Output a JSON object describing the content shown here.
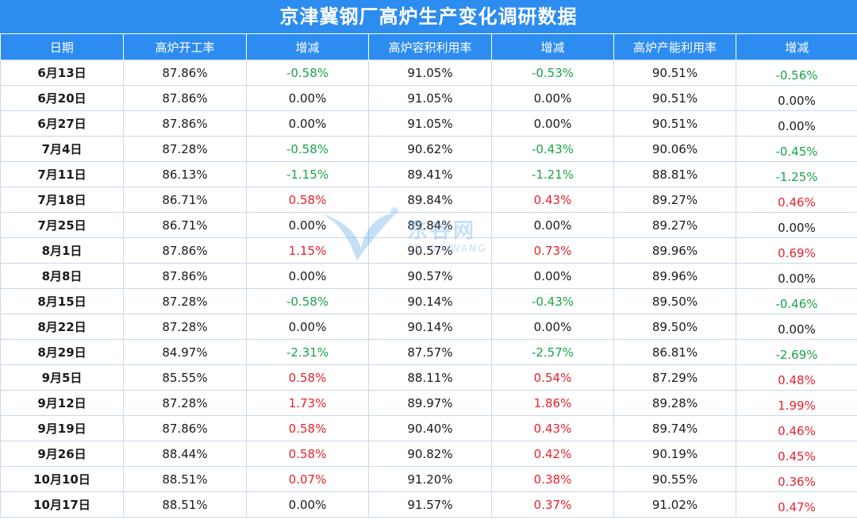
{
  "title": "京津冀钢厂高炉生产变化调研数据",
  "headers": [
    "日期",
    "高炉开工率",
    "增减",
    "高炉容积利用率",
    "增减",
    "高炉产能利用率",
    "增减"
  ],
  "rows": [
    [
      "6月13日",
      "87.86%",
      "-0.58%",
      "91.05%",
      "-0.53%",
      "90.51%",
      "-0.56%"
    ],
    [
      "6月20日",
      "87.86%",
      "0.00%",
      "91.05%",
      "0.00%",
      "90.51%",
      "0.00%"
    ],
    [
      "6月27日",
      "87.86%",
      "0.00%",
      "91.05%",
      "0.00%",
      "90.51%",
      "0.00%"
    ],
    [
      "7月4日",
      "87.28%",
      "-0.58%",
      "90.62%",
      "-0.43%",
      "90.06%",
      "-0.45%"
    ],
    [
      "7月11日",
      "86.13%",
      "-1.15%",
      "89.41%",
      "-1.21%",
      "88.81%",
      "-1.25%"
    ],
    [
      "7月18日",
      "86.71%",
      "0.58%",
      "89.84%",
      "0.43%",
      "89.27%",
      "0.46%"
    ],
    [
      "7月25日",
      "86.71%",
      "0.00%",
      "89.84%",
      "0.00%",
      "89.27%",
      "0.00%"
    ],
    [
      "8月1日",
      "87.86%",
      "1.15%",
      "90.57%",
      "0.73%",
      "89.96%",
      "0.69%"
    ],
    [
      "8月8日",
      "87.86%",
      "0.00%",
      "90.57%",
      "0.00%",
      "89.96%",
      "0.00%"
    ],
    [
      "8月15日",
      "87.28%",
      "-0.58%",
      "90.14%",
      "-0.43%",
      "89.50%",
      "-0.46%"
    ],
    [
      "8月22日",
      "87.28%",
      "0.00%",
      "90.14%",
      "0.00%",
      "89.50%",
      "0.00%"
    ],
    [
      "8月29日",
      "84.97%",
      "-2.31%",
      "87.57%",
      "-2.57%",
      "86.81%",
      "-2.69%"
    ],
    [
      "9月5日",
      "85.55%",
      "0.58%",
      "88.11%",
      "0.54%",
      "87.29%",
      "0.48%"
    ],
    [
      "9月12日",
      "87.28%",
      "1.73%",
      "89.97%",
      "1.86%",
      "89.28%",
      "1.99%"
    ],
    [
      "9月19日",
      "87.86%",
      "0.58%",
      "90.40%",
      "0.43%",
      "89.74%",
      "0.46%"
    ],
    [
      "9月26日",
      "88.44%",
      "0.58%",
      "90.82%",
      "0.42%",
      "90.19%",
      "0.45%"
    ],
    [
      "10月10日",
      "88.51%",
      "0.07%",
      "91.20%",
      "0.38%",
      "90.55%",
      "0.36%"
    ],
    [
      "10月17日",
      "88.51%",
      "0.00%",
      "91.57%",
      "0.37%",
      "91.02%",
      "0.47%"
    ]
  ],
  "watermark": {
    "text": "东谷网",
    "sub": "BU GU WANG"
  },
  "colors": {
    "header_bg": "#2d8cf0",
    "positive": "#e8212b",
    "negative": "#1aa34a",
    "border": "#c9d7ee"
  }
}
